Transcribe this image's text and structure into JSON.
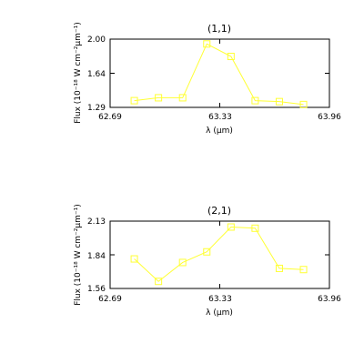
{
  "chart_data": [
    {
      "type": "line",
      "title": "(1,1)",
      "xlabel": "λ (μm)",
      "ylabel": "Flux (10⁻¹⁸ W cm⁻²μm⁻¹)",
      "xlim": [
        62.69,
        63.96
      ],
      "ylim": [
        1.29,
        2.0
      ],
      "x_ticks": [
        "62.69",
        "63.33",
        "63.96"
      ],
      "y_ticks": [
        "1.29",
        "1.64",
        "2.00"
      ],
      "series": [
        {
          "color": "#ffff33",
          "marker": "square",
          "x": [
            62.83,
            62.97,
            63.11,
            63.25,
            63.39,
            63.53,
            63.67,
            63.81
          ],
          "y": [
            1.36,
            1.39,
            1.39,
            1.95,
            1.82,
            1.36,
            1.35,
            1.32
          ]
        }
      ]
    },
    {
      "type": "line",
      "title": "(2,1)",
      "xlabel": "λ (μm)",
      "ylabel": "Flux (10⁻¹⁸ W cm⁻²μm⁻¹)",
      "xlim": [
        62.69,
        63.96
      ],
      "ylim": [
        1.56,
        2.13
      ],
      "x_ticks": [
        "62.69",
        "63.33",
        "63.96"
      ],
      "y_ticks": [
        "1.56",
        "1.84",
        "2.13"
      ],
      "series": [
        {
          "color": "#ffff33",
          "marker": "square",
          "x": [
            62.83,
            62.97,
            63.11,
            63.25,
            63.39,
            63.53,
            63.67,
            63.81
          ],
          "y": [
            1.81,
            1.62,
            1.78,
            1.87,
            2.08,
            2.07,
            1.73,
            1.72
          ]
        }
      ]
    }
  ]
}
